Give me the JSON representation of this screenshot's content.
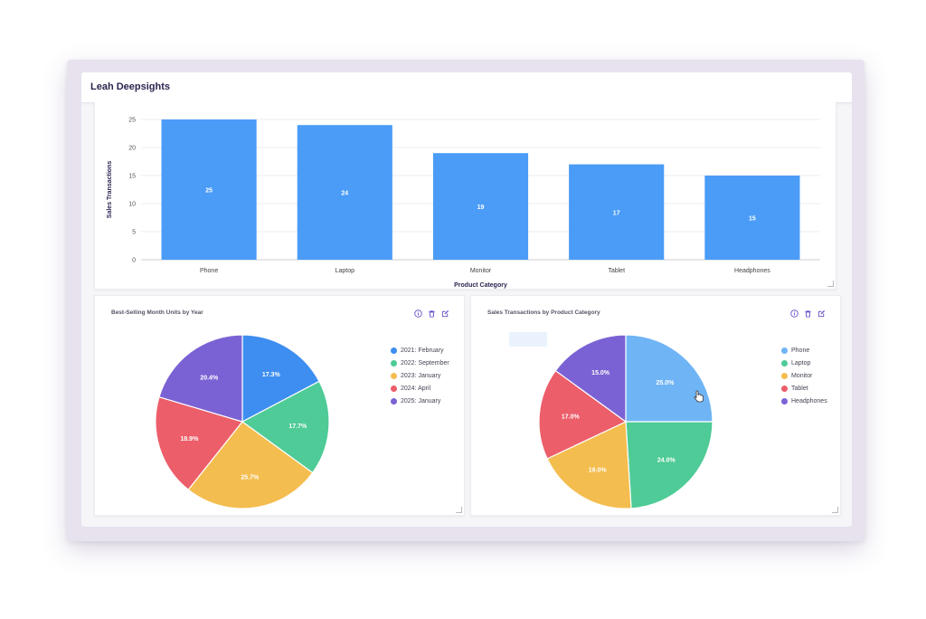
{
  "app": {
    "title": "Leah Deepsights"
  },
  "bar_panel": {
    "chart_data": {
      "type": "bar",
      "categories": [
        "Phone",
        "Laptop",
        "Monitor",
        "Tablet",
        "Headphones"
      ],
      "values": [
        25,
        24,
        19,
        17,
        15
      ],
      "value_labels": [
        "25",
        "24",
        "19",
        "17",
        "15"
      ],
      "xlabel": "Product Category",
      "ylabel": "Sales Transactions",
      "ylim": [
        0,
        25
      ],
      "yticks": [
        0,
        5,
        10,
        15,
        20,
        25
      ],
      "ytick_labels": [
        "0",
        "5",
        "10",
        "15",
        "20",
        "25"
      ],
      "bar_color": "#4a9cf7",
      "grid": true
    }
  },
  "pie_panel_1": {
    "title": "Best-Selling Month Units by Year",
    "actions": [
      "info-icon",
      "trash-icon",
      "edit-icon"
    ],
    "chart_data": {
      "type": "pie",
      "categories": [
        "2021: February",
        "2022: September",
        "2023: January",
        "2024: April",
        "2025: January"
      ],
      "values": [
        17.3,
        17.7,
        25.7,
        18.9,
        20.4
      ],
      "labels": [
        "17.3%",
        "17.7%",
        "25.7%",
        "18.9%",
        "20.4%"
      ],
      "colors": [
        "#3d8ef0",
        "#4ecb96",
        "#f4bd4f",
        "#ec5e6a",
        "#7b62d4"
      ],
      "legend_position": "right"
    }
  },
  "pie_panel_2": {
    "title": "Sales Transactions by Product Category",
    "actions": [
      "info-icon",
      "trash-icon",
      "edit-icon"
    ],
    "chart_data": {
      "type": "pie",
      "categories": [
        "Phone",
        "Laptop",
        "Monitor",
        "Tablet",
        "Headphones"
      ],
      "values": [
        25.0,
        24.0,
        19.0,
        17.0,
        15.0
      ],
      "labels": [
        "25.0%",
        "24.0%",
        "19.0%",
        "17.0%",
        "15.0%"
      ],
      "colors": [
        "#6fb4f5",
        "#4ecb96",
        "#f4bd4f",
        "#ec5e6a",
        "#7b62d4"
      ],
      "legend_position": "right"
    }
  }
}
